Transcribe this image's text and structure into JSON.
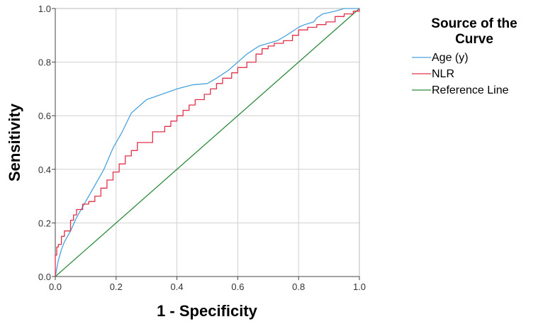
{
  "chart_data": {
    "type": "line",
    "title": "",
    "xlabel": "1 - Specificity",
    "ylabel": "Sensitivity",
    "xlim": [
      0,
      1
    ],
    "ylim": [
      0,
      1
    ],
    "x_ticks": [
      "0.0",
      "0.2",
      "0.4",
      "0.6",
      "0.8",
      "1.0"
    ],
    "y_ticks": [
      "0.0",
      "0.2",
      "0.4",
      "0.6",
      "0.8",
      "1.0"
    ],
    "grid": true,
    "legend_position": "top-right, outside plot",
    "legend_title": [
      "Source of the",
      "Curve"
    ],
    "series": [
      {
        "name": "Age (y)",
        "color": "#4aa3df",
        "step": false,
        "x": [
          0,
          0.005,
          0.01,
          0.02,
          0.03,
          0.05,
          0.07,
          0.1,
          0.13,
          0.16,
          0.19,
          0.22,
          0.25,
          0.28,
          0.3,
          0.35,
          0.4,
          0.45,
          0.5,
          0.53,
          0.57,
          0.6,
          0.63,
          0.67,
          0.7,
          0.73,
          0.76,
          0.8,
          0.82,
          0.85,
          0.86,
          0.88,
          0.9,
          0.92,
          0.95,
          0.98,
          1
        ],
        "y": [
          0,
          0.03,
          0.06,
          0.1,
          0.13,
          0.17,
          0.22,
          0.28,
          0.34,
          0.4,
          0.48,
          0.54,
          0.61,
          0.64,
          0.66,
          0.68,
          0.7,
          0.715,
          0.72,
          0.74,
          0.77,
          0.8,
          0.83,
          0.86,
          0.87,
          0.88,
          0.9,
          0.93,
          0.94,
          0.95,
          0.965,
          0.98,
          0.985,
          0.99,
          1,
          1,
          1
        ]
      },
      {
        "name": "NLR",
        "color": "#e0314a",
        "step": true,
        "x": [
          0,
          0.005,
          0.01,
          0.02,
          0.03,
          0.05,
          0.06,
          0.07,
          0.09,
          0.11,
          0.13,
          0.15,
          0.17,
          0.19,
          0.21,
          0.23,
          0.25,
          0.27,
          0.32,
          0.36,
          0.38,
          0.4,
          0.42,
          0.44,
          0.46,
          0.49,
          0.51,
          0.53,
          0.55,
          0.58,
          0.6,
          0.63,
          0.66,
          0.68,
          0.7,
          0.72,
          0.75,
          0.78,
          0.8,
          0.83,
          0.86,
          0.89,
          0.92,
          0.95,
          0.98,
          1
        ],
        "y": [
          0.08,
          0.11,
          0.12,
          0.15,
          0.17,
          0.21,
          0.23,
          0.25,
          0.27,
          0.28,
          0.3,
          0.33,
          0.36,
          0.39,
          0.42,
          0.45,
          0.47,
          0.5,
          0.54,
          0.56,
          0.58,
          0.6,
          0.62,
          0.64,
          0.66,
          0.68,
          0.7,
          0.72,
          0.74,
          0.76,
          0.78,
          0.8,
          0.83,
          0.85,
          0.86,
          0.87,
          0.88,
          0.9,
          0.92,
          0.93,
          0.94,
          0.95,
          0.97,
          0.98,
          0.99,
          1
        ]
      },
      {
        "name": "Reference Line",
        "color": "#2e8b3c",
        "step": false,
        "x": [
          0,
          1
        ],
        "y": [
          0,
          1
        ]
      }
    ]
  }
}
